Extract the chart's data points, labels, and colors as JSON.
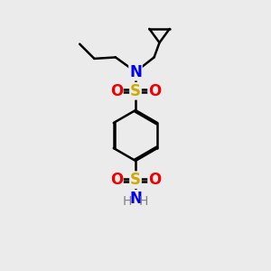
{
  "bg_color": "#ebebeb",
  "atom_colors": {
    "C": "#000000",
    "N": "#0000ee",
    "O": "#ee0000",
    "S": "#ccaa00",
    "H": "#808080"
  },
  "bond_color": "#000000",
  "bond_width": 1.8,
  "figsize": [
    3.0,
    3.0
  ],
  "dpi": 100
}
